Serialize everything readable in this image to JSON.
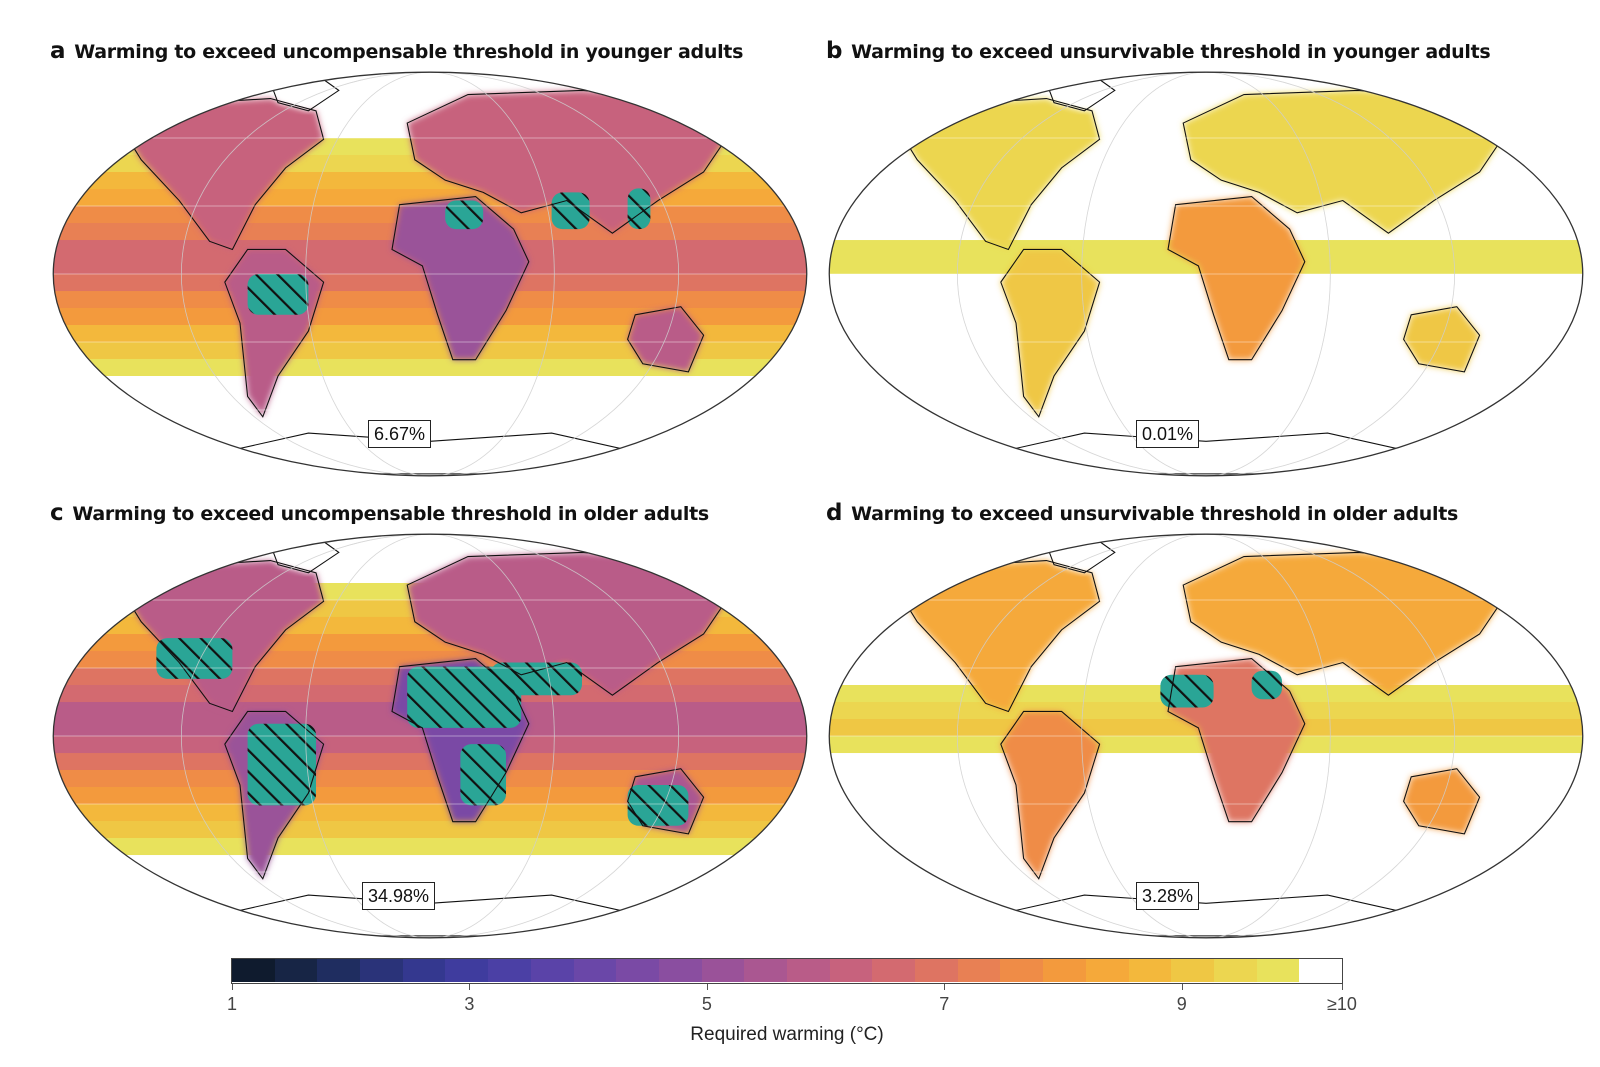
{
  "panels": [
    {
      "letter": "a",
      "title": "Warming to exceed uncompensable threshold in younger adults",
      "percent": "6.67%",
      "base": 6.3,
      "land": -1.6,
      "hatch": "low"
    },
    {
      "letter": "b",
      "title": "Warming to exceed unsurvivable threshold  in younger adults",
      "percent": "0.01%",
      "base": 9.6,
      "land": -1.7,
      "hatch": "none"
    },
    {
      "letter": "c",
      "title": "Warming to exceed uncompensable threshold in older adults",
      "percent": "34.98%",
      "base": 5.6,
      "land": -1.4,
      "hatch": "high"
    },
    {
      "letter": "d",
      "title": "Warming to exceed unsurvivable threshold in older adults",
      "percent": "3.28%",
      "base": 9.0,
      "land": -2.2,
      "hatch": "mid"
    }
  ],
  "colorbar": {
    "title": "Required warming (°C)",
    "ticks": [
      {
        "value": 1,
        "label": "1"
      },
      {
        "value": 3,
        "label": "3"
      },
      {
        "value": 5,
        "label": "5"
      },
      {
        "value": 7,
        "label": "7"
      },
      {
        "value": 9,
        "label": "9"
      },
      {
        "value": 10.35,
        "label": "≥10"
      }
    ],
    "min": 1,
    "max": 10.35,
    "colors": [
      "#0f1b2e",
      "#172545",
      "#1f2d60",
      "#2a3379",
      "#34388f",
      "#3f3c9e",
      "#4b40a5",
      "#5a43a8",
      "#6a47a8",
      "#7a4aa5",
      "#8a4ea0",
      "#9a5299",
      "#aa5791",
      "#b95c88",
      "#c7627d",
      "#d36a70",
      "#de7462",
      "#e88054",
      "#ef8c47",
      "#f39a3d",
      "#f5a93a",
      "#f3b83c",
      "#efc744",
      "#ecd650",
      "#e8e25c",
      "#ffffff"
    ]
  },
  "colors": {
    "hatch_fill": "#2aa596",
    "coast": "#111111"
  }
}
